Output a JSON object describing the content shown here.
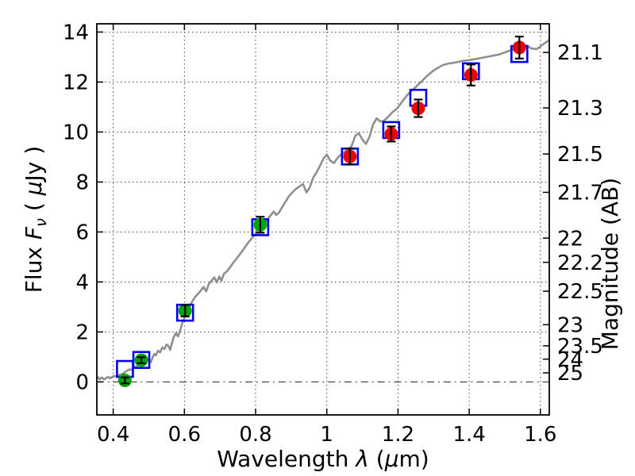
{
  "chart_data": {
    "type": "line+scatter",
    "title": "",
    "xlabel_parts": [
      {
        "t": "Wavelength  ",
        "italic": false
      },
      {
        "t": "λ",
        "italic": true
      },
      {
        "t": " (",
        "italic": false
      },
      {
        "t": "μ",
        "italic": true
      },
      {
        "t": "m)",
        "italic": false
      }
    ],
    "ylabel_left_parts": [
      {
        "t": "Flux  ",
        "italic": false
      },
      {
        "t": "F",
        "italic": true
      },
      {
        "t": "ν",
        "italic": true,
        "sub": true
      },
      {
        "t": "  ( ",
        "italic": false
      },
      {
        "t": "μ",
        "italic": true
      },
      {
        "t": "Jy )",
        "italic": false
      }
    ],
    "ylabel_right": "Magnitude (AB)",
    "xlim": [
      0.354,
      1.625
    ],
    "ylim": [
      -1.32,
      14.33
    ],
    "grid": true,
    "zero_line": true,
    "x_ticks": [
      {
        "label": "0.4",
        "value": 0.4
      },
      {
        "label": "0.6",
        "value": 0.6
      },
      {
        "label": "0.8",
        "value": 0.8
      },
      {
        "label": "1",
        "value": 1.0
      },
      {
        "label": "1.2",
        "value": 1.2
      },
      {
        "label": "1.4",
        "value": 1.4
      },
      {
        "label": "1.6",
        "value": 1.6
      }
    ],
    "y_ticks_left": [
      {
        "label": "0",
        "value": 0
      },
      {
        "label": "2",
        "value": 2
      },
      {
        "label": "4",
        "value": 4
      },
      {
        "label": "6",
        "value": 6
      },
      {
        "label": "8",
        "value": 8
      },
      {
        "label": "10",
        "value": 10
      },
      {
        "label": "12",
        "value": 12
      },
      {
        "label": "14",
        "value": 14
      }
    ],
    "y_ticks_right": [
      {
        "label": "21.1",
        "flux": 13.183
      },
      {
        "label": "21.3",
        "flux": 10.965
      },
      {
        "label": "21.5",
        "flux": 9.12
      },
      {
        "label": "21.7",
        "flux": 7.586
      },
      {
        "label": "22",
        "flux": 5.754
      },
      {
        "label": "22.2",
        "flux": 4.786
      },
      {
        "label": "22.5",
        "flux": 3.631
      },
      {
        "label": "23",
        "flux": 2.291
      },
      {
        "label": "23.5",
        "flux": 1.445
      },
      {
        "label": "24",
        "flux": 0.912
      },
      {
        "label": "25",
        "flux": 0.363
      }
    ],
    "colors": {
      "spectrum": "#8f8f8f",
      "model_square": "#0000ee",
      "observed_blue_band": "#00a400",
      "observed_red_band": "#ee0000",
      "error_bar": "#000000",
      "grid": "#333333",
      "frame": "#000000"
    },
    "photometry": {
      "bands_um": [
        0.433,
        0.479,
        0.602,
        0.813,
        1.065,
        1.181,
        1.257,
        1.405,
        1.541
      ],
      "model_flux_uJy": [
        0.52,
        0.88,
        2.77,
        6.19,
        9.02,
        10.08,
        11.37,
        12.43,
        13.12
      ],
      "observed_flux_uJy": [
        0.06,
        0.87,
        2.85,
        6.29,
        9.02,
        9.92,
        10.95,
        12.28,
        13.38
      ],
      "observed_err_uJy": [
        0.12,
        0.12,
        0.23,
        0.32,
        0.32,
        0.3,
        0.35,
        0.42,
        0.44
      ],
      "point_color": [
        "green",
        "green",
        "green",
        "green",
        "red",
        "red",
        "red",
        "red",
        "red"
      ]
    },
    "spectrum_points": [
      [
        0.355,
        0.22
      ],
      [
        0.362,
        0.1
      ],
      [
        0.368,
        0.18
      ],
      [
        0.374,
        0.1
      ],
      [
        0.38,
        0.16
      ],
      [
        0.386,
        0.2
      ],
      [
        0.392,
        0.14
      ],
      [
        0.398,
        0.22
      ],
      [
        0.404,
        0.24
      ],
      [
        0.41,
        0.2
      ],
      [
        0.416,
        0.27
      ],
      [
        0.422,
        0.3
      ],
      [
        0.428,
        0.34
      ],
      [
        0.434,
        0.4
      ],
      [
        0.44,
        0.46
      ],
      [
        0.446,
        0.5
      ],
      [
        0.452,
        0.48
      ],
      [
        0.458,
        0.55
      ],
      [
        0.464,
        0.6
      ],
      [
        0.47,
        0.68
      ],
      [
        0.476,
        0.75
      ],
      [
        0.482,
        0.85
      ],
      [
        0.488,
        0.92
      ],
      [
        0.494,
        0.96
      ],
      [
        0.5,
        0.88
      ],
      [
        0.505,
        0.78
      ],
      [
        0.51,
        0.95
      ],
      [
        0.515,
        1.12
      ],
      [
        0.52,
        1.06
      ],
      [
        0.526,
        1.25
      ],
      [
        0.532,
        1.18
      ],
      [
        0.538,
        1.38
      ],
      [
        0.544,
        1.32
      ],
      [
        0.55,
        1.5
      ],
      [
        0.556,
        1.42
      ],
      [
        0.56,
        1.28
      ],
      [
        0.565,
        1.55
      ],
      [
        0.57,
        1.8
      ],
      [
        0.576,
        1.95
      ],
      [
        0.582,
        1.82
      ],
      [
        0.588,
        2.05
      ],
      [
        0.594,
        2.35
      ],
      [
        0.599,
        2.52
      ],
      [
        0.604,
        2.72
      ],
      [
        0.609,
        2.95
      ],
      [
        0.615,
        3.05
      ],
      [
        0.622,
        3.22
      ],
      [
        0.63,
        3.4
      ],
      [
        0.638,
        3.52
      ],
      [
        0.646,
        3.65
      ],
      [
        0.654,
        3.8
      ],
      [
        0.661,
        3.62
      ],
      [
        0.668,
        3.9
      ],
      [
        0.676,
        4.05
      ],
      [
        0.684,
        4.18
      ],
      [
        0.691,
        3.98
      ],
      [
        0.698,
        4.22
      ],
      [
        0.704,
        4.05
      ],
      [
        0.711,
        4.32
      ],
      [
        0.719,
        4.42
      ],
      [
        0.728,
        4.58
      ],
      [
        0.738,
        4.78
      ],
      [
        0.748,
        4.96
      ],
      [
        0.758,
        5.15
      ],
      [
        0.768,
        5.35
      ],
      [
        0.778,
        5.55
      ],
      [
        0.788,
        5.72
      ],
      [
        0.797,
        5.88
      ],
      [
        0.805,
        6.05
      ],
      [
        0.811,
        6.2
      ],
      [
        0.816,
        6.02
      ],
      [
        0.822,
        6.25
      ],
      [
        0.829,
        6.42
      ],
      [
        0.836,
        6.55
      ],
      [
        0.843,
        6.68
      ],
      [
        0.851,
        6.82
      ],
      [
        0.858,
        6.68
      ],
      [
        0.866,
        6.78
      ],
      [
        0.874,
        6.98
      ],
      [
        0.883,
        7.18
      ],
      [
        0.893,
        7.42
      ],
      [
        0.903,
        7.58
      ],
      [
        0.913,
        7.72
      ],
      [
        0.923,
        7.82
      ],
      [
        0.933,
        7.92
      ],
      [
        0.943,
        7.58
      ],
      [
        0.952,
        7.78
      ],
      [
        0.961,
        8.15
      ],
      [
        0.971,
        8.38
      ],
      [
        0.981,
        8.65
      ],
      [
        0.991,
        8.95
      ],
      [
        1.0,
        9.1
      ],
      [
        1.01,
        8.85
      ],
      [
        1.02,
        8.76
      ],
      [
        1.03,
        8.96
      ],
      [
        1.04,
        9.1
      ],
      [
        1.05,
        9.2
      ],
      [
        1.06,
        9.3
      ],
      [
        1.07,
        9.45
      ],
      [
        1.08,
        9.85
      ],
      [
        1.09,
        9.95
      ],
      [
        1.1,
        9.7
      ],
      [
        1.11,
        9.52
      ],
      [
        1.12,
        9.8
      ],
      [
        1.13,
        10.3
      ],
      [
        1.14,
        10.55
      ],
      [
        1.15,
        10.42
      ],
      [
        1.16,
        10.45
      ],
      [
        1.172,
        10.6
      ],
      [
        1.185,
        10.8
      ],
      [
        1.198,
        10.95
      ],
      [
        1.212,
        11.22
      ],
      [
        1.226,
        11.48
      ],
      [
        1.24,
        11.68
      ],
      [
        1.254,
        11.85
      ],
      [
        1.268,
        12.05
      ],
      [
        1.282,
        12.25
      ],
      [
        1.296,
        12.42
      ],
      [
        1.31,
        12.55
      ],
      [
        1.326,
        12.68
      ],
      [
        1.342,
        12.74
      ],
      [
        1.36,
        12.78
      ],
      [
        1.38,
        12.84
      ],
      [
        1.4,
        12.88
      ],
      [
        1.42,
        12.92
      ],
      [
        1.44,
        12.98
      ],
      [
        1.462,
        13.04
      ],
      [
        1.484,
        13.1
      ],
      [
        1.506,
        13.22
      ],
      [
        1.528,
        13.32
      ],
      [
        1.548,
        13.42
      ],
      [
        1.562,
        13.46
      ],
      [
        1.575,
        13.34
      ],
      [
        1.59,
        13.32
      ],
      [
        1.605,
        13.48
      ],
      [
        1.615,
        13.58
      ],
      [
        1.625,
        13.68
      ]
    ]
  }
}
